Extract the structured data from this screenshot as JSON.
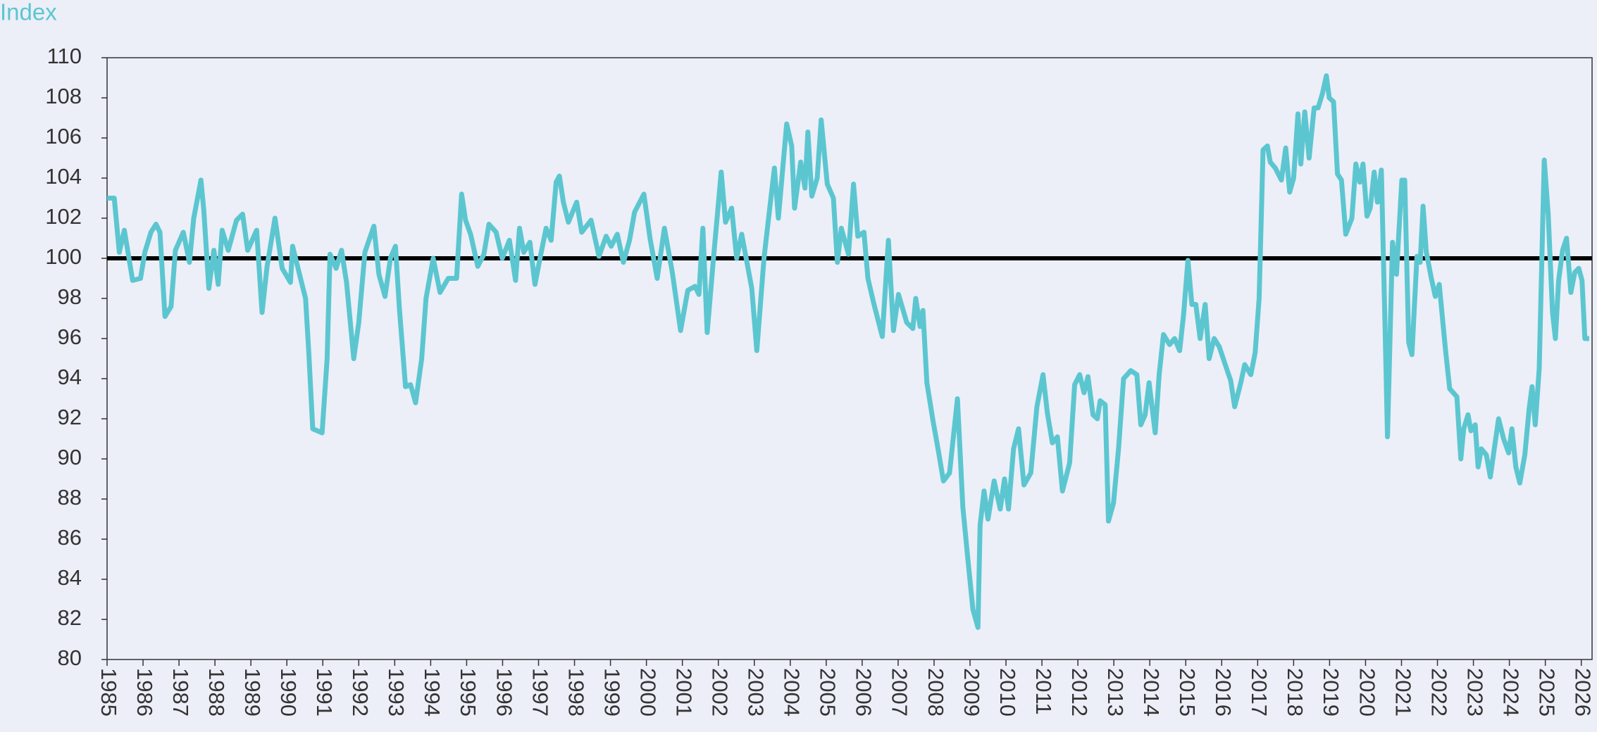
{
  "chart_data": {
    "type": "line",
    "ylabel": "Index",
    "color": "#5cc6d0",
    "reference_line": 100,
    "reference_color": "#000000",
    "xlim": [
      1985,
      2026.3
    ],
    "xticks": [
      1985,
      1986,
      1987,
      1988,
      1989,
      1990,
      1991,
      1992,
      1993,
      1994,
      1995,
      1996,
      1997,
      1998,
      1999,
      2000,
      2001,
      2002,
      2003,
      2004,
      2005,
      2006,
      2007,
      2008,
      2009,
      2010,
      2011,
      2012,
      2013,
      2014,
      2015,
      2016,
      2017,
      2018,
      2019,
      2020,
      2021,
      2022,
      2023,
      2024,
      2025,
      2026
    ],
    "ylim": [
      80,
      110
    ],
    "yticks": [
      80,
      82,
      84,
      86,
      88,
      90,
      92,
      94,
      96,
      98,
      100,
      102,
      104,
      106,
      108,
      110
    ],
    "x": [
      1985.0,
      1985.2,
      1985.34,
      1985.48,
      1985.71,
      1985.93,
      1986.05,
      1986.22,
      1986.36,
      1986.47,
      1986.61,
      1986.78,
      1986.9,
      1987.12,
      1987.29,
      1987.41,
      1987.61,
      1987.69,
      1987.83,
      1987.97,
      1988.09,
      1988.2,
      1988.37,
      1988.6,
      1988.77,
      1988.91,
      1989.16,
      1989.31,
      1989.45,
      1989.67,
      1989.87,
      1990.1,
      1990.16,
      1990.38,
      1990.52,
      1990.61,
      1990.72,
      1990.98,
      1991.12,
      1991.2,
      1991.37,
      1991.52,
      1991.66,
      1991.86,
      1992.0,
      1992.17,
      1992.42,
      1992.56,
      1992.73,
      1992.88,
      1993.02,
      1993.13,
      1993.3,
      1993.44,
      1993.58,
      1993.75,
      1993.87,
      1994.07,
      1994.26,
      1994.49,
      1994.72,
      1994.86,
      1994.97,
      1995.11,
      1995.31,
      1995.48,
      1995.62,
      1995.82,
      1995.99,
      1996.19,
      1996.36,
      1996.47,
      1996.59,
      1996.76,
      1996.9,
      1997.04,
      1997.21,
      1997.35,
      1997.49,
      1997.58,
      1997.69,
      1997.83,
      1998.06,
      1998.2,
      1998.46,
      1998.68,
      1998.88,
      1999.02,
      1999.19,
      1999.36,
      1999.53,
      1999.67,
      1999.93,
      2000.1,
      2000.3,
      2000.5,
      2000.72,
      2000.95,
      2001.15,
      2001.35,
      2001.46,
      2001.57,
      2001.69,
      2001.86,
      2002.08,
      2002.2,
      2002.37,
      2002.51,
      2002.65,
      2002.93,
      2003.07,
      2003.27,
      2003.41,
      2003.56,
      2003.67,
      2003.9,
      2004.04,
      2004.12,
      2004.29,
      2004.41,
      2004.49,
      2004.6,
      2004.75,
      2004.86,
      2005.03,
      2005.2,
      2005.31,
      2005.42,
      2005.62,
      2005.76,
      2005.88,
      2006.05,
      2006.16,
      2006.33,
      2006.56,
      2006.73,
      2006.87,
      2007.01,
      2007.24,
      2007.41,
      2007.49,
      2007.61,
      2007.69,
      2007.8,
      2007.97,
      2008.12,
      2008.26,
      2008.43,
      2008.65,
      2008.8,
      2008.94,
      2009.08,
      2009.22,
      2009.28,
      2009.39,
      2009.5,
      2009.67,
      2009.84,
      2009.96,
      2010.07,
      2010.21,
      2010.35,
      2010.5,
      2010.69,
      2010.86,
      2011.03,
      2011.15,
      2011.29,
      2011.43,
      2011.57,
      2011.77,
      2011.91,
      2012.05,
      2012.17,
      2012.28,
      2012.42,
      2012.54,
      2012.62,
      2012.76,
      2012.85,
      2012.99,
      2013.13,
      2013.27,
      2013.47,
      2013.64,
      2013.75,
      2013.87,
      2013.98,
      2014.15,
      2014.26,
      2014.38,
      2014.55,
      2014.69,
      2014.83,
      2014.94,
      2015.06,
      2015.17,
      2015.28,
      2015.4,
      2015.54,
      2015.65,
      2015.79,
      2015.93,
      2016.08,
      2016.25,
      2016.36,
      2016.53,
      2016.64,
      2016.81,
      2016.93,
      2017.04,
      2017.15,
      2017.27,
      2017.35,
      2017.49,
      2017.66,
      2017.78,
      2017.89,
      2018.0,
      2018.12,
      2018.2,
      2018.31,
      2018.43,
      2018.57,
      2018.68,
      2018.8,
      2018.91,
      2018.99,
      2019.11,
      2019.22,
      2019.33,
      2019.45,
      2019.62,
      2019.73,
      2019.84,
      2019.93,
      2020.04,
      2020.13,
      2020.24,
      2020.33,
      2020.44,
      2020.55,
      2020.61,
      2020.75,
      2020.86,
      2021.01,
      2021.09,
      2021.2,
      2021.29,
      2021.43,
      2021.52,
      2021.6,
      2021.69,
      2021.83,
      2021.94,
      2022.05,
      2022.22,
      2022.34,
      2022.54,
      2022.65,
      2022.73,
      2022.85,
      2022.93,
      2023.05,
      2023.13,
      2023.22,
      2023.36,
      2023.47,
      2023.58,
      2023.7,
      2023.84,
      2023.98,
      2024.07,
      2024.18,
      2024.29,
      2024.43,
      2024.55,
      2024.63,
      2024.72,
      2024.83,
      2024.97,
      2025.08,
      2025.2,
      2025.28,
      2025.37,
      2025.48,
      2025.59,
      2025.71,
      2025.82,
      2025.93,
      2026.02,
      2026.1,
      2026.22
    ],
    "values": [
      103,
      103,
      100.3,
      101.4,
      98.9,
      99,
      100.3,
      101.3,
      101.7,
      101.3,
      97.1,
      97.6,
      100.4,
      101.3,
      99.8,
      102,
      103.9,
      102.4,
      98.5,
      100.4,
      98.7,
      101.4,
      100.4,
      101.9,
      102.2,
      100.4,
      101.4,
      97.3,
      99.6,
      102,
      99.5,
      98.8,
      100.6,
      99,
      98,
      95.3,
      91.5,
      91.3,
      95,
      100.2,
      99.5,
      100.4,
      98.8,
      95,
      96.8,
      100.3,
      101.6,
      99.2,
      98.1,
      100,
      100.6,
      97.5,
      93.6,
      93.7,
      92.8,
      95,
      98,
      100,
      98.3,
      99,
      99,
      103.2,
      101.9,
      101.2,
      99.6,
      100.2,
      101.7,
      101.3,
      100,
      100.9,
      98.9,
      101.5,
      100.3,
      100.8,
      98.7,
      100,
      101.5,
      100.9,
      103.8,
      104.1,
      102.8,
      101.8,
      102.8,
      101.3,
      101.9,
      100.1,
      101.1,
      100.6,
      101.2,
      99.8,
      100.9,
      102.3,
      103.2,
      101,
      99,
      101.5,
      99.3,
      96.4,
      98.4,
      98.6,
      98.2,
      101.5,
      96.3,
      99.9,
      104.3,
      101.8,
      102.5,
      100,
      101.2,
      98.5,
      95.4,
      100,
      102.2,
      104.5,
      102,
      106.7,
      105.6,
      102.5,
      104.8,
      103.5,
      106.3,
      103.1,
      104,
      106.9,
      103.7,
      103,
      99.8,
      101.5,
      100.2,
      103.7,
      101.1,
      101.3,
      99,
      97.7,
      96.1,
      100.9,
      96.4,
      98.2,
      96.8,
      96.5,
      98,
      96.6,
      97.4,
      93.8,
      91.9,
      90.4,
      88.9,
      89.3,
      93,
      87.6,
      85,
      82.5,
      81.6,
      86.7,
      88.4,
      87,
      88.9,
      87.5,
      89,
      87.5,
      90.5,
      91.5,
      88.7,
      89.3,
      92.6,
      94.2,
      92.3,
      90.8,
      91.1,
      88.4,
      89.8,
      93.7,
      94.2,
      93.3,
      94.1,
      92.2,
      92,
      92.9,
      92.7,
      86.9,
      87.8,
      90.5,
      94,
      94.4,
      94.2,
      91.7,
      92.2,
      93.8,
      91.3,
      94.2,
      96.2,
      95.7,
      96,
      95.4,
      97.2,
      99.9,
      97.7,
      97.7,
      96,
      97.7,
      95,
      96,
      95.6,
      94.8,
      93.9,
      92.6,
      93.8,
      94.7,
      94.2,
      95.3,
      98,
      105.4,
      105.6,
      104.8,
      104.5,
      103.9,
      105.5,
      103.3,
      104,
      107.2,
      104.7,
      107.3,
      105,
      107.5,
      107.5,
      108.2,
      109.1,
      108,
      107.8,
      104.2,
      103.9,
      101.2,
      102,
      104.7,
      103.8,
      104.7,
      102.1,
      102.5,
      104.3,
      102.8,
      104.4,
      96,
      91.1,
      100.8,
      99.2,
      103.9,
      103.9,
      95.8,
      95.2,
      100.1,
      99.8,
      102.6,
      100.3,
      99,
      98.1,
      98.7,
      95.5,
      93.5,
      93.1,
      90,
      91.5,
      92.2,
      91.4,
      91.7,
      89.6,
      90.5,
      90.2,
      89.1,
      90.5,
      92,
      91,
      90.3,
      91.5,
      89.6,
      88.8,
      90.2,
      92.5,
      93.6,
      91.7,
      94.5,
      104.9,
      102.2,
      97.3,
      96,
      98.9,
      100.4,
      101,
      98.3,
      99.3,
      99.5,
      98.9,
      96,
      96
    ]
  }
}
